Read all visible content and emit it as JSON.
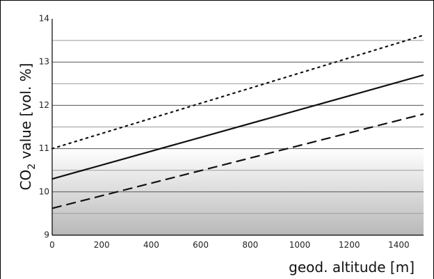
{
  "chart_data": {
    "type": "line",
    "xlabel": "geod. altitude [m]",
    "ylabel": {
      "prefix": "CO",
      "subscript": "2",
      "suffix": " value [vol. %]"
    },
    "xlim": [
      0,
      1500
    ],
    "ylim": [
      9,
      14
    ],
    "x_ticks": [
      "0",
      "200",
      "400",
      "600",
      "800",
      "1000",
      "1200",
      "1400"
    ],
    "y_ticks": [
      "9",
      "10",
      "11",
      "12",
      "13",
      "14"
    ],
    "grid": "horizontal, every 0.5 vol. %",
    "background": "gray gradient band from 9 to 11",
    "series": [
      {
        "style": "dotted",
        "color": "#111111",
        "x": [
          0,
          1500
        ],
        "y": [
          11.0,
          13.62
        ]
      },
      {
        "style": "solid",
        "color": "#111111",
        "x": [
          0,
          1500
        ],
        "y": [
          10.3,
          12.7
        ]
      },
      {
        "style": "dashed",
        "color": "#111111",
        "x": [
          0,
          1500
        ],
        "y": [
          9.62,
          11.8
        ]
      }
    ]
  }
}
